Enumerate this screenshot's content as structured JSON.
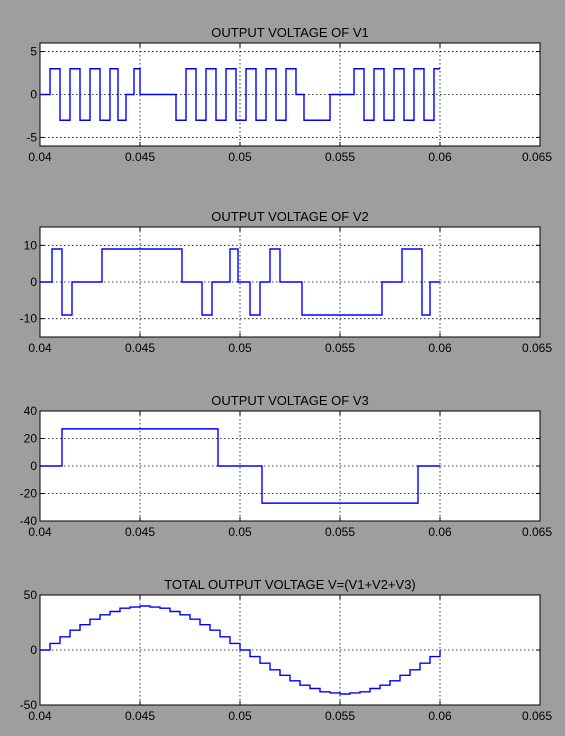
{
  "window": {
    "background": "#9e9e9e",
    "axes_background": "#ffffff",
    "line_color": "#0000ff"
  },
  "chart_data": [
    {
      "type": "line",
      "title": "OUTPUT VOLTAGE OF V1",
      "xlim": [
        0.04,
        0.065
      ],
      "ylim": [
        -6,
        6
      ],
      "xticks": [
        "0.04",
        "0.045",
        "0.05",
        "0.055",
        "0.06",
        "0.065"
      ],
      "yticks": [
        {
          "v": 5,
          "label": "5"
        },
        {
          "v": 0,
          "label": "0"
        },
        {
          "v": -5,
          "label": "-5"
        }
      ],
      "grid": true,
      "series": [
        {
          "x": [
            0.04,
            0.0405,
            0.0405,
            0.041,
            0.041,
            0.0415,
            0.0415,
            0.042,
            0.042,
            0.0425,
            0.0425,
            0.043,
            0.043,
            0.0435,
            0.0435,
            0.0439,
            0.0439,
            0.0443,
            0.0443,
            0.0447,
            0.0447,
            0.045,
            0.045,
            0.0468,
            0.0468,
            0.0473,
            0.0473,
            0.0478,
            0.0478,
            0.0483,
            0.0483,
            0.0488,
            0.0488,
            0.0493,
            0.0493,
            0.0498,
            0.0498,
            0.0503,
            0.0503,
            0.0508,
            0.0508,
            0.0513,
            0.0513,
            0.0518,
            0.0518,
            0.0523,
            0.0523,
            0.0528,
            0.0528,
            0.0532,
            0.0532,
            0.0545,
            0.0545,
            0.0557,
            0.0557,
            0.0562,
            0.0562,
            0.0567,
            0.0567,
            0.0572,
            0.0572,
            0.0577,
            0.0577,
            0.0582,
            0.0582,
            0.0587,
            0.0587,
            0.0592,
            0.0592,
            0.0597,
            0.0597,
            0.06
          ],
          "y": [
            0,
            0,
            3,
            3,
            -3,
            -3,
            3,
            3,
            -3,
            -3,
            3,
            3,
            -3,
            -3,
            3,
            3,
            -3,
            -3,
            0,
            0,
            3,
            3,
            0,
            0,
            -3,
            -3,
            3,
            3,
            -3,
            -3,
            3,
            3,
            -3,
            -3,
            3,
            3,
            -3,
            -3,
            3,
            3,
            -3,
            -3,
            3,
            3,
            -3,
            -3,
            3,
            3,
            0,
            0,
            -3,
            -3,
            0,
            0,
            3,
            3,
            -3,
            -3,
            3,
            3,
            -3,
            -3,
            3,
            3,
            -3,
            -3,
            3,
            3,
            -3,
            -3,
            3,
            3
          ]
        }
      ]
    },
    {
      "type": "line",
      "title": "OUTPUT VOLTAGE OF V2",
      "xlim": [
        0.04,
        0.065
      ],
      "ylim": [
        -15,
        15
      ],
      "xticks": [
        "0.04",
        "0.045",
        "0.05",
        "0.055",
        "0.06",
        "0.065"
      ],
      "yticks": [
        {
          "v": 10,
          "label": "10"
        },
        {
          "v": 0,
          "label": "0"
        },
        {
          "v": -10,
          "label": "-10"
        }
      ],
      "grid": true,
      "series": [
        {
          "x": [
            0.04,
            0.0406,
            0.0406,
            0.0411,
            0.0411,
            0.0416,
            0.0416,
            0.0431,
            0.0431,
            0.0471,
            0.0471,
            0.0481,
            0.0481,
            0.0486,
            0.0486,
            0.0495,
            0.0495,
            0.0499,
            0.0499,
            0.0505,
            0.0505,
            0.051,
            0.051,
            0.0515,
            0.0515,
            0.052,
            0.052,
            0.0531,
            0.0531,
            0.0571,
            0.0571,
            0.0581,
            0.0581,
            0.0591,
            0.0591,
            0.0595,
            0.0595,
            0.06
          ],
          "y": [
            0,
            0,
            9,
            9,
            -9,
            -9,
            0,
            0,
            9,
            9,
            0,
            0,
            -9,
            -9,
            0,
            0,
            9,
            9,
            0,
            0,
            -9,
            -9,
            0,
            0,
            9,
            9,
            0,
            0,
            -9,
            -9,
            0,
            0,
            9,
            9,
            -9,
            -9,
            0,
            0
          ]
        }
      ]
    },
    {
      "type": "line",
      "title": "OUTPUT VOLTAGE OF V3",
      "xlim": [
        0.04,
        0.065
      ],
      "ylim": [
        -40,
        40
      ],
      "xticks": [
        "0.04",
        "0.045",
        "0.05",
        "0.055",
        "0.06",
        "0.065"
      ],
      "yticks": [
        {
          "v": 40,
          "label": "40"
        },
        {
          "v": 20,
          "label": "20"
        },
        {
          "v": 0,
          "label": "0"
        },
        {
          "v": -20,
          "label": "-20"
        },
        {
          "v": -40,
          "label": "-40"
        }
      ],
      "grid": true,
      "series": [
        {
          "x": [
            0.04,
            0.0411,
            0.0411,
            0.0489,
            0.0489,
            0.0511,
            0.0511,
            0.0589,
            0.0589,
            0.06
          ],
          "y": [
            0,
            0,
            27,
            27,
            0,
            0,
            -27,
            -27,
            0,
            0
          ]
        }
      ]
    },
    {
      "type": "line",
      "title": "TOTAL OUTPUT VOLTAGE V=(V1+V2+V3)",
      "xlim": [
        0.04,
        0.065
      ],
      "ylim": [
        -50,
        50
      ],
      "xticks": [
        "0.04",
        "0.045",
        "0.05",
        "0.055",
        "0.06",
        "0.065"
      ],
      "yticks": [
        {
          "v": 50,
          "label": "50"
        },
        {
          "v": 0,
          "label": "0"
        },
        {
          "v": -50,
          "label": "-50"
        }
      ],
      "grid": true,
      "staircase": true,
      "series": [
        {
          "x": [
            0.04,
            0.0405,
            0.041,
            0.0415,
            0.042,
            0.0425,
            0.043,
            0.0435,
            0.044,
            0.0445,
            0.045,
            0.0455,
            0.046,
            0.0465,
            0.047,
            0.0475,
            0.048,
            0.0485,
            0.049,
            0.0495,
            0.05,
            0.0505,
            0.051,
            0.0515,
            0.052,
            0.0525,
            0.053,
            0.0535,
            0.054,
            0.0545,
            0.055,
            0.0555,
            0.056,
            0.0565,
            0.057,
            0.0575,
            0.058,
            0.0585,
            0.059,
            0.0595,
            0.06
          ],
          "y": [
            0,
            6,
            12,
            18,
            23,
            28,
            32,
            35,
            38,
            39,
            40,
            39,
            38,
            35,
            32,
            28,
            23,
            18,
            12,
            6,
            0,
            -6,
            -12,
            -18,
            -23,
            -28,
            -32,
            -35,
            -38,
            -39,
            -40,
            -39,
            -38,
            -35,
            -32,
            -28,
            -23,
            -18,
            -12,
            -6,
            0
          ]
        }
      ]
    }
  ]
}
